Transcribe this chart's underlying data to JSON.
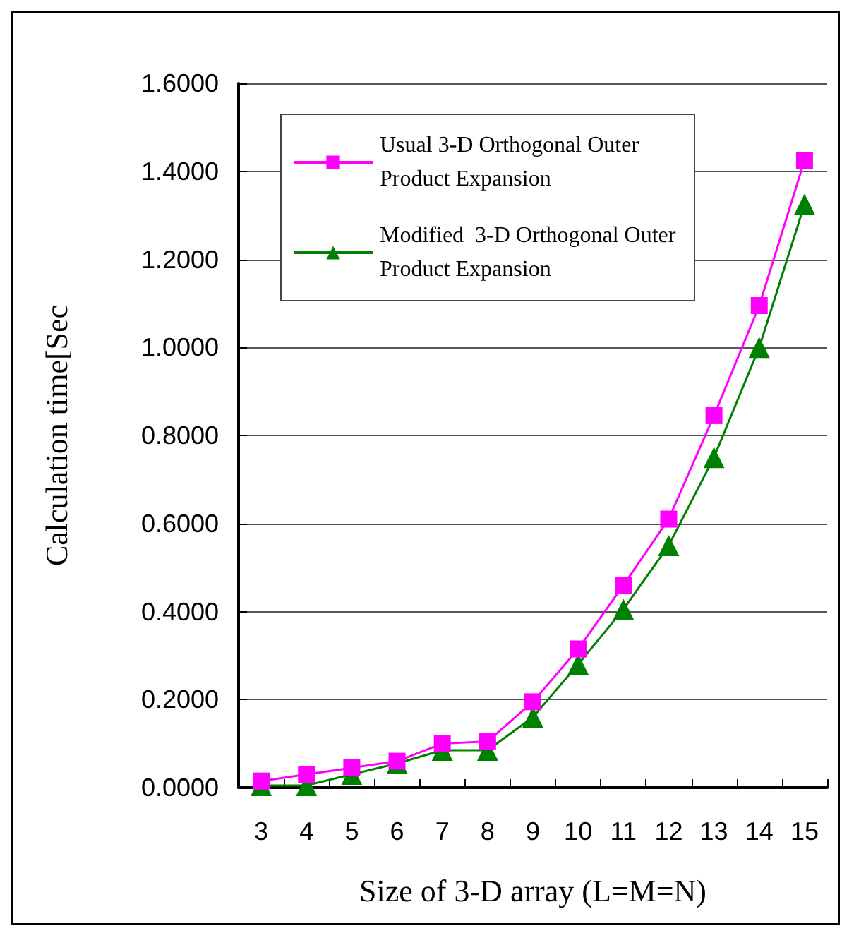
{
  "chart_data": {
    "type": "line",
    "xlabel": "Size of 3-D array (L=M=N)",
    "ylabel": "Calculation time[Sec",
    "categories": [
      "3",
      "4",
      "5",
      "6",
      "7",
      "8",
      "9",
      "10",
      "11",
      "12",
      "13",
      "14",
      "15"
    ],
    "series": [
      {
        "name": "Usual 3-D Orthogonal Outer Product Expansion",
        "color": "#ff00ff",
        "marker": "square",
        "values": [
          0.015,
          0.03,
          0.045,
          0.06,
          0.1,
          0.105,
          0.195,
          0.315,
          0.46,
          0.61,
          0.845,
          1.095,
          1.425
        ]
      },
      {
        "name": "Modified  3-D Orthogonal Outer Product Expansion",
        "color": "#008000",
        "marker": "triangle",
        "values": [
          0.005,
          0.005,
          0.03,
          0.055,
          0.085,
          0.085,
          0.16,
          0.28,
          0.405,
          0.55,
          0.75,
          1.0,
          1.325
        ]
      }
    ],
    "ylim": [
      0,
      1.6
    ],
    "yticks": [
      {
        "value": 0,
        "label": "0.0000"
      },
      {
        "value": 0.2,
        "label": "0.2000"
      },
      {
        "value": 0.4,
        "label": "0.4000"
      },
      {
        "value": 0.6,
        "label": "0.6000"
      },
      {
        "value": 0.8,
        "label": "0.8000"
      },
      {
        "value": 1.0,
        "label": "1.0000"
      },
      {
        "value": 1.2,
        "label": "1.2000"
      },
      {
        "value": 1.4,
        "label": "1.4000"
      },
      {
        "value": 1.6,
        "label": "1.6000"
      }
    ],
    "grid": "y",
    "legend": "top left",
    "line_style": "solid"
  }
}
